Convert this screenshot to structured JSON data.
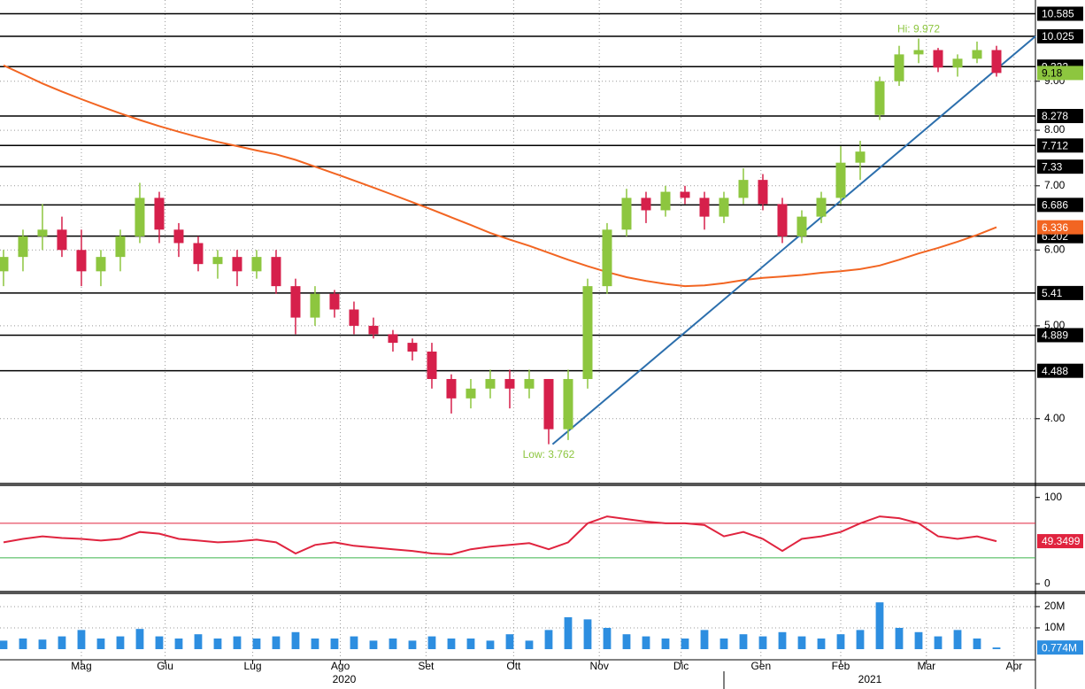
{
  "chart_data": [
    {
      "type": "candlestick",
      "x": [
        0,
        1,
        2,
        3,
        4,
        5,
        6,
        7,
        8,
        9,
        10,
        11,
        12,
        13,
        14,
        15,
        16,
        17,
        18,
        19,
        20,
        21,
        22,
        23,
        24,
        25,
        26,
        27,
        28,
        29,
        30,
        31,
        32,
        33,
        34,
        35,
        36,
        37,
        38,
        39,
        40,
        41,
        42,
        43,
        44,
        45,
        46,
        47,
        48,
        49,
        50,
        51
      ],
      "open": [
        5.7,
        5.9,
        6.2,
        6.3,
        6.0,
        5.7,
        5.9,
        6.2,
        6.8,
        6.3,
        6.1,
        5.8,
        5.9,
        5.7,
        5.9,
        5.5,
        5.1,
        5.4,
        5.2,
        5.0,
        4.9,
        4.8,
        4.7,
        4.4,
        4.2,
        4.3,
        4.4,
        4.3,
        4.4,
        3.9,
        4.4,
        5.5,
        6.3,
        6.8,
        6.6,
        6.9,
        6.8,
        6.5,
        6.8,
        7.1,
        6.7,
        6.2,
        6.5,
        6.8,
        7.4,
        8.3,
        9.0,
        9.6,
        9.7,
        9.3,
        9.5,
        9.7
      ],
      "high": [
        6.0,
        6.3,
        6.7,
        6.5,
        6.3,
        6.0,
        6.3,
        7.05,
        6.9,
        6.4,
        6.2,
        6.0,
        6.0,
        6.0,
        6.0,
        5.6,
        5.5,
        5.45,
        5.3,
        5.1,
        4.95,
        4.85,
        4.8,
        4.45,
        4.4,
        4.5,
        4.5,
        4.5,
        4.4,
        4.5,
        5.6,
        6.4,
        6.95,
        6.9,
        7.0,
        7.0,
        6.9,
        6.9,
        7.3,
        7.2,
        6.8,
        6.6,
        6.9,
        7.7,
        7.8,
        9.1,
        9.8,
        9.972,
        9.75,
        9.6,
        9.9,
        9.8
      ],
      "low": [
        5.5,
        5.7,
        6.0,
        5.9,
        5.5,
        5.5,
        5.7,
        6.1,
        6.1,
        5.9,
        5.7,
        5.6,
        5.5,
        5.6,
        5.4,
        4.9,
        5.0,
        5.1,
        4.9,
        4.85,
        4.7,
        4.6,
        4.3,
        4.05,
        4.1,
        4.2,
        4.1,
        4.2,
        3.762,
        3.8,
        4.3,
        5.4,
        6.2,
        6.4,
        6.5,
        6.7,
        6.3,
        6.4,
        6.7,
        6.6,
        6.1,
        6.1,
        6.4,
        6.7,
        7.1,
        8.2,
        8.9,
        9.4,
        9.2,
        9.1,
        9.4,
        9.1
      ],
      "close": [
        5.9,
        6.2,
        6.3,
        6.0,
        5.7,
        5.9,
        6.2,
        6.8,
        6.3,
        6.1,
        5.8,
        5.9,
        5.7,
        5.9,
        5.5,
        5.1,
        5.4,
        5.2,
        5.0,
        4.9,
        4.8,
        4.7,
        4.4,
        4.2,
        4.3,
        4.4,
        4.3,
        4.4,
        3.9,
        4.4,
        5.5,
        6.3,
        6.8,
        6.6,
        6.9,
        6.8,
        6.5,
        6.8,
        7.1,
        6.7,
        6.2,
        6.5,
        6.8,
        7.4,
        7.6,
        9.0,
        9.6,
        9.7,
        9.3,
        9.5,
        9.7,
        9.18
      ],
      "up_color": "#8dc63f",
      "down_color": "#d6204b",
      "xlim": [
        -0.18,
        53.0
      ],
      "ylim": [
        3.43,
        10.94
      ],
      "log_scale": true,
      "yticks": [
        {
          "value": 4,
          "label": "4.00"
        },
        {
          "value": 5,
          "label": "5.00"
        },
        {
          "value": 6,
          "label": "6.00"
        },
        {
          "value": 7,
          "label": "7.00"
        },
        {
          "value": 8,
          "label": "8.00"
        },
        {
          "value": 9,
          "label": "9.00"
        }
      ],
      "levels": [
        10.585,
        10.025,
        9.322,
        8.278,
        7.712,
        7.33,
        6.686,
        6.202,
        5.41,
        4.889,
        4.488
      ],
      "moving_average": {
        "color": "#f26522",
        "x": [
          0,
          1,
          2,
          3,
          4,
          5,
          6,
          7,
          8,
          9,
          10,
          11,
          12,
          13,
          14,
          15,
          16,
          17,
          18,
          19,
          20,
          21,
          22,
          23,
          24,
          25,
          26,
          27,
          28,
          29,
          30,
          31,
          32,
          33,
          34,
          35,
          36,
          37,
          38,
          39,
          40,
          41,
          42,
          43,
          44,
          45,
          46,
          47,
          48,
          49,
          50,
          51
        ],
        "values": [
          9.35,
          9.15,
          8.95,
          8.78,
          8.62,
          8.47,
          8.33,
          8.2,
          8.08,
          7.97,
          7.87,
          7.78,
          7.7,
          7.62,
          7.55,
          7.45,
          7.33,
          7.21,
          7.09,
          6.97,
          6.85,
          6.73,
          6.61,
          6.49,
          6.37,
          6.25,
          6.15,
          6.06,
          5.96,
          5.86,
          5.77,
          5.69,
          5.62,
          5.57,
          5.53,
          5.5,
          5.51,
          5.54,
          5.58,
          5.61,
          5.63,
          5.65,
          5.68,
          5.7,
          5.73,
          5.78,
          5.86,
          5.95,
          6.03,
          6.12,
          6.22,
          6.336
        ]
      },
      "trendline": {
        "color": "#2c6fad",
        "x": [
          28.2,
          53.0
        ],
        "values": [
          3.762,
          10.025
        ]
      },
      "annotations": [
        {
          "text": "Hi: 9.972",
          "x": 47,
          "value": 9.972
        },
        {
          "text": "Low: 3.762",
          "x": 28,
          "value": 3.762
        }
      ]
    },
    {
      "type": "line",
      "x": [
        0,
        1,
        2,
        3,
        4,
        5,
        6,
        7,
        8,
        9,
        10,
        11,
        12,
        13,
        14,
        15,
        16,
        17,
        18,
        19,
        20,
        21,
        22,
        23,
        24,
        25,
        26,
        27,
        28,
        29,
        30,
        31,
        32,
        33,
        34,
        35,
        36,
        37,
        38,
        39,
        40,
        41,
        42,
        43,
        44,
        45,
        46,
        47,
        48,
        49,
        50,
        51
      ],
      "values": [
        48,
        52,
        55,
        53,
        52,
        50,
        52,
        60,
        58,
        52,
        50,
        48,
        49,
        51,
        48,
        35,
        45,
        48,
        44,
        42,
        40,
        38,
        35,
        34,
        40,
        43,
        45,
        47,
        40,
        48,
        70,
        78,
        75,
        72,
        70,
        70,
        68,
        55,
        60,
        52,
        38,
        52,
        55,
        60,
        70,
        78,
        76,
        70,
        55,
        52,
        55,
        49.3499
      ],
      "color": "#e0243f",
      "xlim": [
        -0.18,
        53.0
      ],
      "ylim": [
        -6,
        112
      ],
      "yticks": [
        0,
        100
      ],
      "bands": [
        {
          "value": 70,
          "color": "#e0243f"
        },
        {
          "value": 30,
          "color": "#3cb44b"
        }
      ]
    },
    {
      "type": "bar",
      "x": [
        0,
        1,
        2,
        3,
        4,
        5,
        6,
        7,
        8,
        9,
        10,
        11,
        12,
        13,
        14,
        15,
        16,
        17,
        18,
        19,
        20,
        21,
        22,
        23,
        24,
        25,
        26,
        27,
        28,
        29,
        30,
        31,
        32,
        33,
        34,
        35,
        36,
        37,
        38,
        39,
        40,
        41,
        42,
        43,
        44,
        45,
        46,
        47,
        48,
        49,
        50,
        51
      ],
      "values": [
        4000000,
        5000000,
        4500000,
        6000000,
        9000000,
        5000000,
        6000000,
        9500000,
        6000000,
        5000000,
        7000000,
        5000000,
        6000000,
        5000000,
        6000000,
        8000000,
        5000000,
        5000000,
        6000000,
        4000000,
        5000000,
        4000000,
        6000000,
        5000000,
        5000000,
        4000000,
        7000000,
        4000000,
        9000000,
        15000000,
        14000000,
        10000000,
        7000000,
        6000000,
        5000000,
        5000000,
        9000000,
        5000000,
        7000000,
        6000000,
        8000000,
        6000000,
        5000000,
        7000000,
        9000000,
        22000000,
        10000000,
        8000000,
        6000000,
        9000000,
        5000000,
        774000
      ],
      "last_label": "0.774M",
      "color": "#2d8ee0",
      "xlim": [
        -0.18,
        53.0
      ],
      "ylim": [
        -5000000,
        25400000
      ],
      "yticks": [
        {
          "value": 10000000,
          "label": "10M"
        },
        {
          "value": 20000000,
          "label": "20M"
        }
      ],
      "xticks": [
        {
          "value": 4,
          "label": "Mag"
        },
        {
          "value": 8.3,
          "label": "Giu"
        },
        {
          "value": 12.8,
          "label": "Lug"
        },
        {
          "value": 17.3,
          "label": "Ago"
        },
        {
          "value": 21.7,
          "label": "Set"
        },
        {
          "value": 26.2,
          "label": "Ott"
        },
        {
          "value": 30.6,
          "label": "Nov"
        },
        {
          "value": 34.8,
          "label": "Dic"
        },
        {
          "value": 38.9,
          "label": "Gen"
        },
        {
          "value": 43.0,
          "label": "Feb"
        },
        {
          "value": 47.4,
          "label": "Mar"
        },
        {
          "value": 51.9,
          "label": "Apr"
        }
      ],
      "year_groups": [
        {
          "value": 17.5,
          "label": "2020"
        },
        {
          "value": 44.5,
          "label": "2021"
        },
        {
          "value": 37.0,
          "label": null
        }
      ]
    }
  ]
}
